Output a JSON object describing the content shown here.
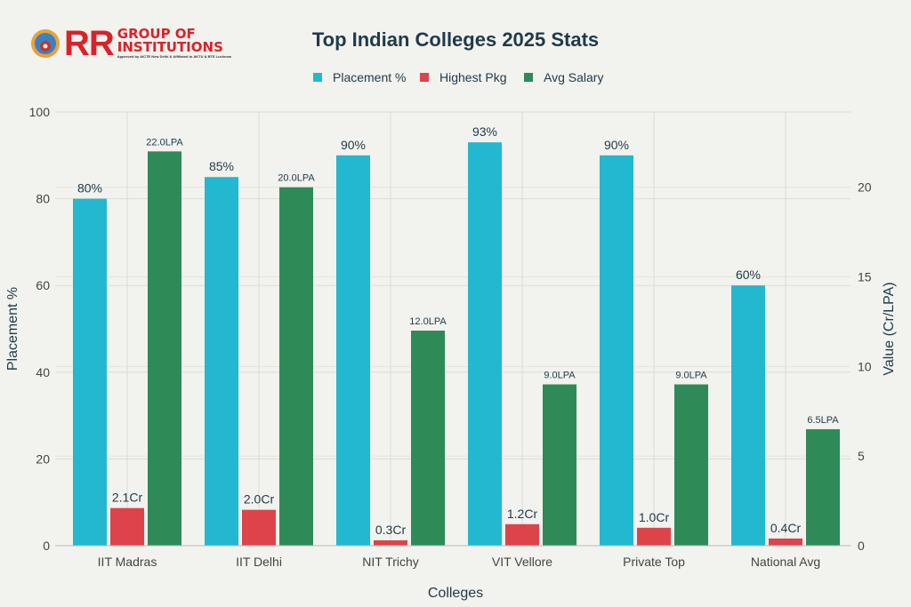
{
  "logo": {
    "mark": "RR",
    "line1": "GROUP OF",
    "line2": "INSTITUTIONS",
    "tagline": "Approved by AICTE New Delhi & Affiliated to AKTU & BTE Lucknow"
  },
  "chart_data": {
    "type": "bar",
    "title": "Top Indian Colleges 2025 Stats",
    "xlabel": "Colleges",
    "ylabel": "Placement %",
    "ylabel_right": "Value (Cr/LPA)",
    "ylim": [
      0,
      100
    ],
    "ylim_right": [
      0,
      24.2
    ],
    "yticks": [
      0,
      20,
      40,
      60,
      80,
      100
    ],
    "yticks_right": [
      0,
      5,
      10,
      15,
      20
    ],
    "grid": true,
    "legend_position": "top",
    "categories": [
      "IIT Madras",
      "IIT Delhi",
      "NIT Trichy",
      "VIT Vellore",
      "Private Top",
      "National Avg"
    ],
    "series": [
      {
        "name": "Placement %",
        "axis": "left",
        "color": "#22b8cf",
        "values": [
          80,
          85,
          90,
          93,
          90,
          60
        ],
        "labels": [
          "80%",
          "85%",
          "90%",
          "93%",
          "90%",
          "60%"
        ]
      },
      {
        "name": "Highest Pkg",
        "axis": "right",
        "color": "#dc4449",
        "values": [
          2.1,
          2.0,
          0.3,
          1.2,
          1.0,
          0.4
        ],
        "labels": [
          "2.1Cr",
          "2.0Cr",
          "0.3Cr",
          "1.2Cr",
          "1.0Cr",
          "0.4Cr"
        ]
      },
      {
        "name": "Avg Salary",
        "axis": "right",
        "color": "#2e8b57",
        "values": [
          22.0,
          20.0,
          12.0,
          9.0,
          9.0,
          6.5
        ],
        "labels": [
          "22.0LPA",
          "20.0LPA",
          "12.0LPA",
          "9.0LPA",
          "9.0LPA",
          "6.5LPA"
        ]
      }
    ]
  }
}
